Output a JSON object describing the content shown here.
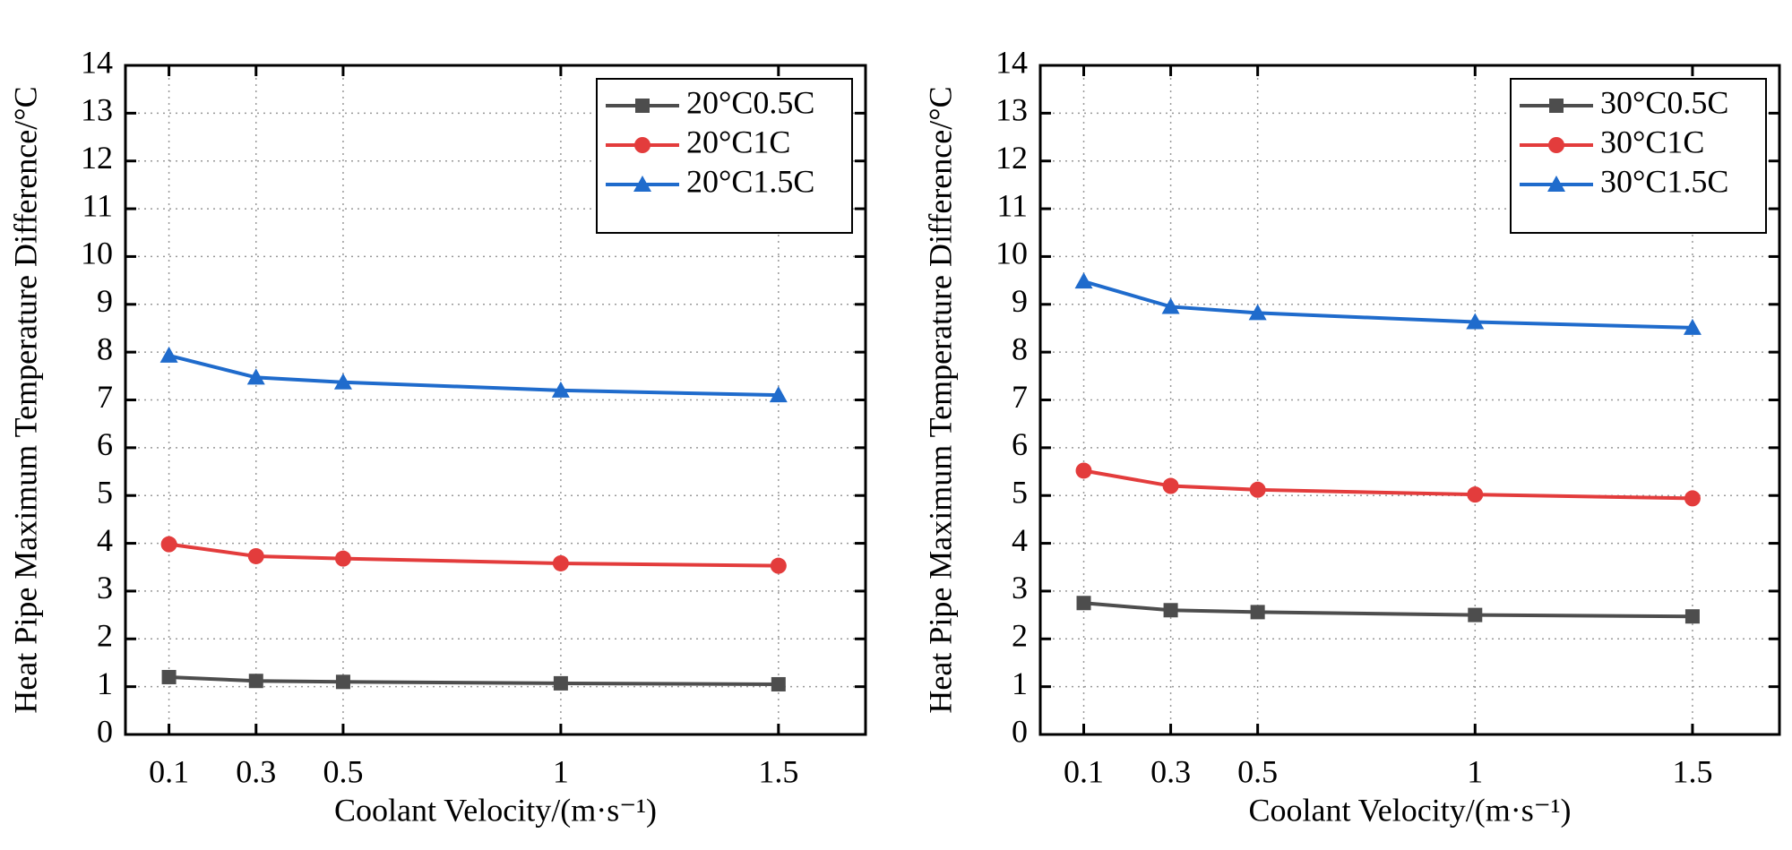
{
  "chart_data": [
    {
      "type": "line",
      "xlabel": "Coolant Velocity/(m·s⁻¹)",
      "ylabel": "Heat Pipe Maximum Temperature Difference/°C",
      "x": [
        0.1,
        0.3,
        0.5,
        1,
        1.5
      ],
      "xlim": [
        0,
        1.7
      ],
      "xticks": [
        0.1,
        0.3,
        0.5,
        1,
        1.5
      ],
      "ylim": [
        0,
        14
      ],
      "yticks": [
        0,
        1,
        2,
        3,
        4,
        5,
        6,
        7,
        8,
        9,
        10,
        11,
        12,
        13,
        14
      ],
      "grid": true,
      "legend": "upper right",
      "series": [
        {
          "name": "20°C0.5C",
          "color": "#4d4d4d",
          "marker": "square",
          "values": [
            1.2,
            1.12,
            1.1,
            1.07,
            1.05
          ]
        },
        {
          "name": "20°C1C",
          "color": "#e33c3c",
          "marker": "circle",
          "values": [
            3.98,
            3.73,
            3.68,
            3.58,
            3.53
          ]
        },
        {
          "name": "20°C1.5C",
          "color": "#1f6bcc",
          "marker": "triangle",
          "values": [
            7.93,
            7.47,
            7.37,
            7.2,
            7.1
          ]
        }
      ]
    },
    {
      "type": "line",
      "xlabel": "Coolant Velocity/(m·s⁻¹)",
      "ylabel": "Heat Pipe Maximum Temperature Difference/°C",
      "x": [
        0.1,
        0.3,
        0.5,
        1,
        1.5
      ],
      "xlim": [
        0,
        1.7
      ],
      "xticks": [
        0.1,
        0.3,
        0.5,
        1,
        1.5
      ],
      "ylim": [
        0,
        14
      ],
      "yticks": [
        0,
        1,
        2,
        3,
        4,
        5,
        6,
        7,
        8,
        9,
        10,
        11,
        12,
        13,
        14
      ],
      "grid": true,
      "legend": "upper right",
      "series": [
        {
          "name": "30°C0.5C",
          "color": "#4d4d4d",
          "marker": "square",
          "values": [
            2.75,
            2.6,
            2.56,
            2.5,
            2.47
          ]
        },
        {
          "name": "30°C1C",
          "color": "#e33c3c",
          "marker": "circle",
          "values": [
            5.52,
            5.2,
            5.12,
            5.02,
            4.94
          ]
        },
        {
          "name": "30°C1.5C",
          "color": "#1f6bcc",
          "marker": "triangle",
          "values": [
            9.48,
            8.95,
            8.82,
            8.63,
            8.51
          ]
        }
      ]
    }
  ]
}
